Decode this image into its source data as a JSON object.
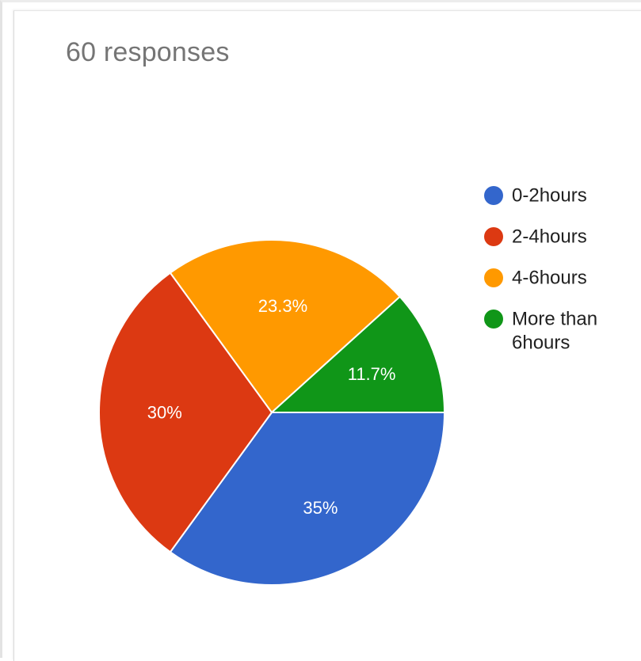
{
  "header": {
    "responses_label": "60 responses"
  },
  "chart_data": {
    "type": "pie",
    "categories": [
      "0-2hours",
      "2-4hours",
      "4-6hours",
      "More than 6hours"
    ],
    "values": [
      35,
      30,
      23.3,
      11.7
    ],
    "value_labels": [
      "35%",
      "30%",
      "23.3%",
      "11.7%"
    ],
    "colors": [
      "#3366cc",
      "#dc3912",
      "#ff9900",
      "#109618"
    ],
    "legend": {
      "position": "right",
      "entries": [
        {
          "lines": [
            "0-2hours"
          ]
        },
        {
          "lines": [
            "2-4hours"
          ]
        },
        {
          "lines": [
            "4-6hours"
          ]
        },
        {
          "lines": [
            "More than",
            "6hours"
          ]
        }
      ]
    }
  }
}
